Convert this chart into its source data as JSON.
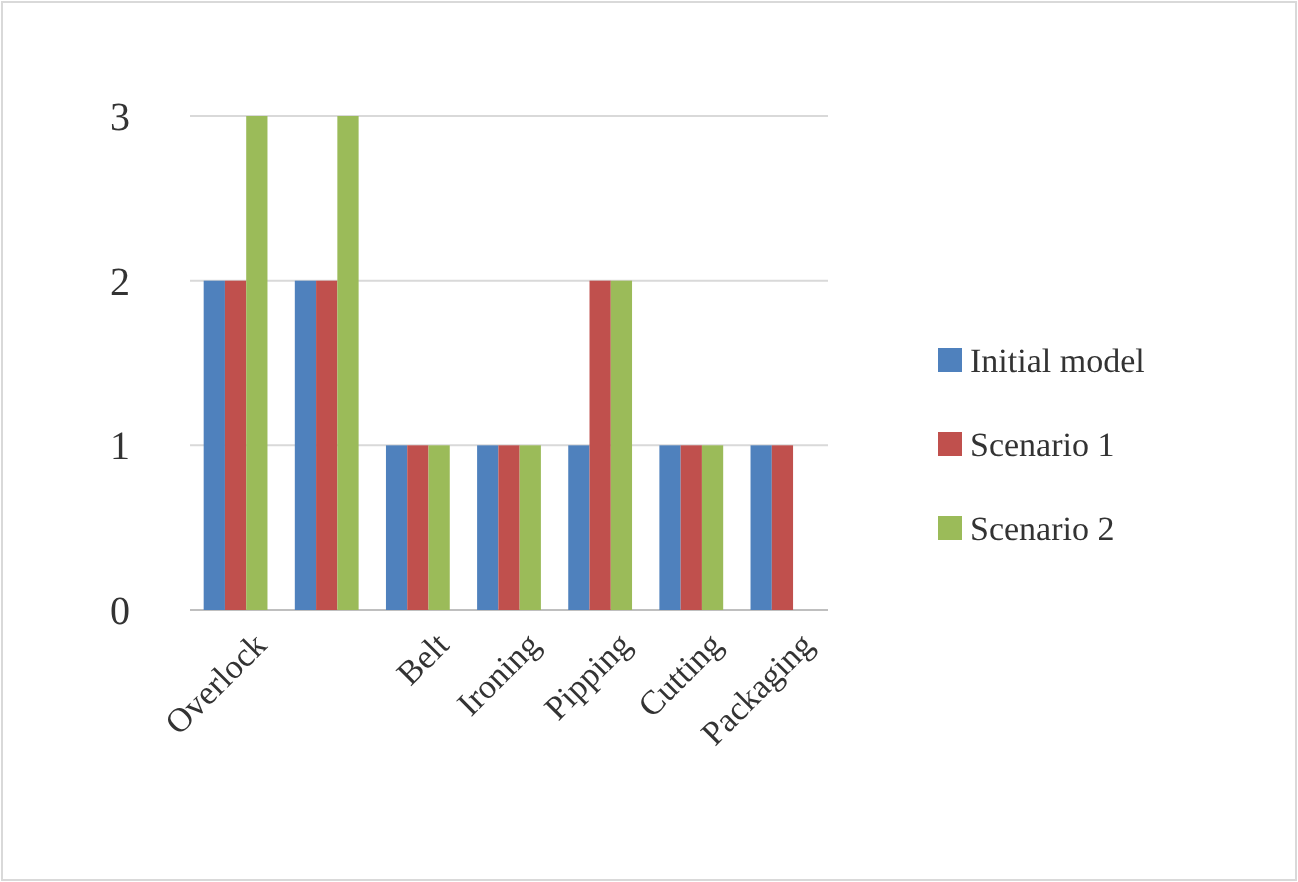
{
  "chart_data": {
    "type": "bar",
    "categories": [
      "Overlock",
      null,
      "Belt",
      "Ironing",
      "Pipping",
      "Cutting",
      "Packaging"
    ],
    "series": [
      {
        "name": "Initial model",
        "color": "#4f81bd",
        "values": [
          2,
          2,
          1,
          1,
          1,
          1,
          1
        ]
      },
      {
        "name": "Scenario 1",
        "color": "#c0504d",
        "values": [
          2,
          2,
          1,
          1,
          2,
          1,
          1
        ]
      },
      {
        "name": "Scenario 2",
        "color": "#9bbb59",
        "values": [
          3,
          3,
          1,
          1,
          2,
          1,
          0
        ]
      }
    ],
    "ylim": [
      0,
      3
    ],
    "yticks": [
      0,
      1,
      2,
      3
    ],
    "grid": "y",
    "legend": "right"
  }
}
